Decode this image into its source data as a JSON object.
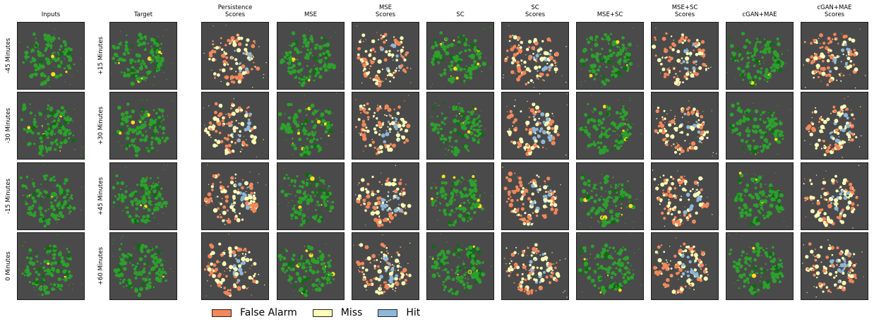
{
  "columns": [
    {
      "title": "Inputs",
      "kind": "radar"
    },
    {
      "title": "Target",
      "kind": "radar"
    },
    {
      "title": "Persistence\nScores",
      "kind": "scores"
    },
    {
      "title": "MSE",
      "kind": "radar"
    },
    {
      "title": "MSE\nScores",
      "kind": "scores"
    },
    {
      "title": "SC",
      "kind": "radar"
    },
    {
      "title": "SC\nScores",
      "kind": "scores"
    },
    {
      "title": "MSE+SC",
      "kind": "radar"
    },
    {
      "title": "MSE+SC\nScores",
      "kind": "scores"
    },
    {
      "title": "cGAN+MAE",
      "kind": "radar"
    },
    {
      "title": "cGAN+MAE\nScores",
      "kind": "scores"
    }
  ],
  "input_rows": [
    "-45 Minutes",
    "-30 Minutes",
    "-15 Minutes",
    "0 Minutes"
  ],
  "target_rows": [
    "+15 Minutes",
    "+30 Minutes",
    "+45 Minutes",
    "+60 Minutes"
  ],
  "legend": [
    {
      "label": "False Alarm",
      "color": "#f4875a"
    },
    {
      "label": "Miss",
      "color": "#fdfcb8"
    },
    {
      "label": "Hit",
      "color": "#8db8d8"
    }
  ],
  "colors": {
    "background": "#4a4a4a",
    "radar_light": "#2ca02c",
    "radar_dark": "#0f6b12",
    "radar_hot": "#ffe01a"
  }
}
